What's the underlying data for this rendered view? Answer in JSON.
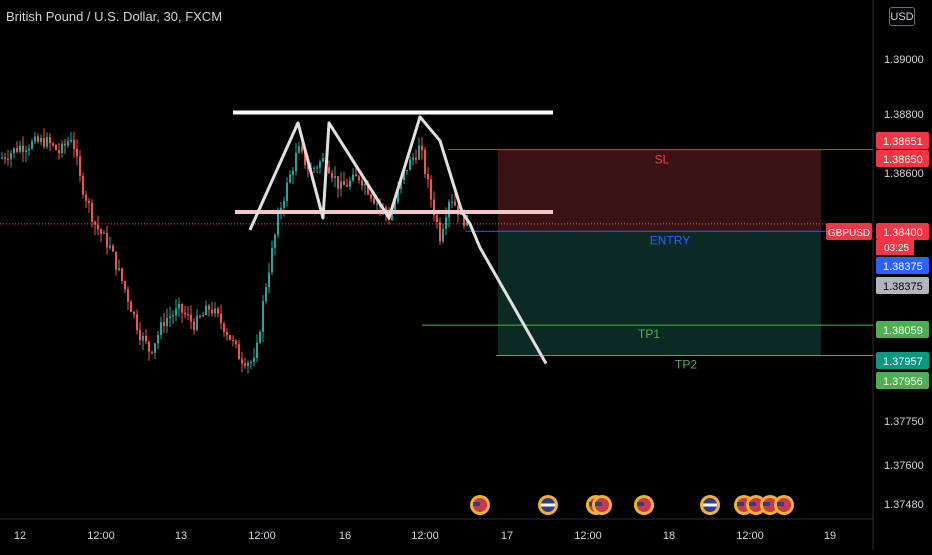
{
  "header": {
    "title": "British Pound / U.S. Dollar, 30, FXCM",
    "currency": "USD"
  },
  "colors": {
    "background": "#000000",
    "up": "#26a69a",
    "down": "#ef5350",
    "pattern": "#e0e0e0",
    "sl_zone": "#3a1414",
    "tp_zone": "#0b2a24",
    "entry_line": "#2962ff",
    "sl_line": "#f23645",
    "tp_line": "#4caf50"
  },
  "chart_data": {
    "type": "candlestick",
    "title": "British Pound / U.S. Dollar, 30, FXCM",
    "ylim": [
      1.3742,
      1.3912
    ],
    "y_ticks": [
      "1.39000",
      "1.38800",
      "1.38600",
      "1.38400",
      "1.37750",
      "1.37600",
      "1.37480"
    ],
    "x_ticks": [
      "12",
      "12:00",
      "13",
      "12:00",
      "16",
      "12:00",
      "17",
      "12:00",
      "18",
      "12:00",
      "19"
    ],
    "price_path": [
      [
        0,
        1.3862
      ],
      [
        20,
        1.3866
      ],
      [
        45,
        1.3868
      ],
      [
        60,
        1.3864
      ],
      [
        72,
        1.387
      ],
      [
        80,
        1.3855
      ],
      [
        95,
        1.384
      ],
      [
        110,
        1.3832
      ],
      [
        125,
        1.3818
      ],
      [
        140,
        1.3803
      ],
      [
        150,
        1.3797
      ],
      [
        165,
        1.3808
      ],
      [
        180,
        1.3811
      ],
      [
        195,
        1.3806
      ],
      [
        210,
        1.3812
      ],
      [
        225,
        1.3805
      ],
      [
        240,
        1.3795
      ],
      [
        255,
        1.3793
      ],
      [
        265,
        1.3818
      ],
      [
        280,
        1.3845
      ],
      [
        298,
        1.3865
      ],
      [
        310,
        1.3858
      ],
      [
        325,
        1.3862
      ],
      [
        340,
        1.3852
      ],
      [
        360,
        1.3856
      ],
      [
        375,
        1.3848
      ],
      [
        390,
        1.3842
      ],
      [
        405,
        1.3858
      ],
      [
        420,
        1.3866
      ],
      [
        430,
        1.385
      ],
      [
        440,
        1.3836
      ],
      [
        450,
        1.385
      ],
      [
        462,
        1.3842
      ],
      [
        470,
        1.384
      ]
    ],
    "pattern": {
      "resistance": 1.38775,
      "neckline": 1.3844,
      "zigzag": [
        1.3838,
        1.3874,
        1.3842,
        1.3874,
        1.3842,
        1.3874,
        1.3842,
        1.3876,
        1.3868,
        1.3844,
        1.384,
        1.3793
      ]
    },
    "levels": [
      {
        "name": "SL",
        "value": 1.3865,
        "label": "1.38650"
      },
      {
        "name": "ENTRY",
        "value": 1.38375,
        "label": "1.38375"
      },
      {
        "name": "TP1",
        "value": 1.38059,
        "label": "1.38059"
      },
      {
        "name": "TP2",
        "value": 1.37957,
        "label": "1.37957"
      }
    ],
    "price_tags": [
      {
        "text": "1.38651",
        "value": 1.38651,
        "style": "red"
      },
      {
        "text": "1.38650",
        "value": 1.3865,
        "style": "red"
      },
      {
        "text": "GBPUSD",
        "value": 1.384,
        "style": "symbol"
      },
      {
        "text": "1.38400",
        "value": 1.384,
        "style": "red"
      },
      {
        "text": "03:25",
        "value": 1.384,
        "style": "countdown"
      },
      {
        "text": "1.38375",
        "value": 1.38375,
        "style": "blue"
      },
      {
        "text": "1.38375",
        "value": 1.38375,
        "style": "gray"
      },
      {
        "text": "1.38059",
        "value": 1.38059,
        "style": "green"
      },
      {
        "text": "1.37957",
        "value": 1.37957,
        "style": "teal"
      },
      {
        "text": "1.37956",
        "value": 1.37956,
        "style": "green"
      }
    ],
    "current_price": 1.384,
    "event_flags": [
      "us",
      "uk",
      "us",
      "us",
      "us",
      "uk",
      "us",
      "us",
      "us",
      "us"
    ]
  }
}
